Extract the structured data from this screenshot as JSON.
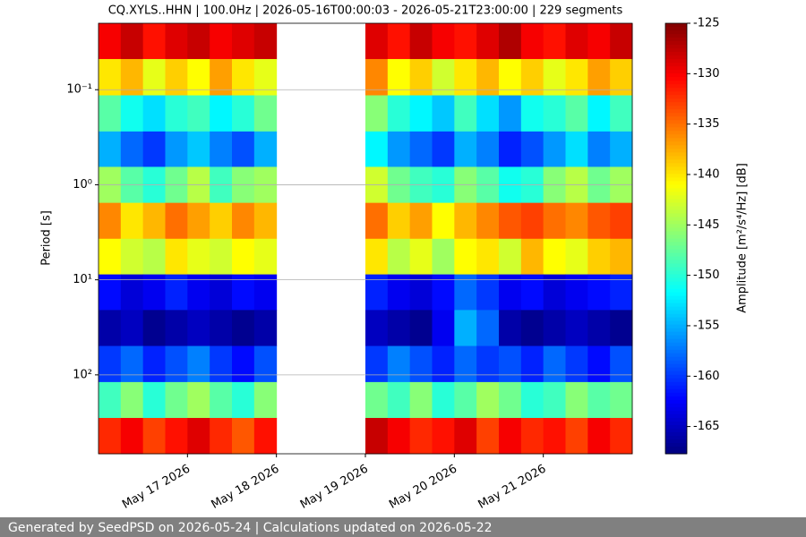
{
  "chart_data": {
    "type": "heatmap",
    "title": "CQ.XYLS..HHN | 100.0Hz | 2026-05-16T00:00:03 - 2026-05-21T23:00:00 | 229 segments",
    "ylabel": "Period [s]",
    "zlabel": "Amplitude [m²/s⁴/Hz] [dB]",
    "cmap": "jet",
    "ylog": true,
    "yinvert": true,
    "grid": true,
    "xlim": [
      "2026-05-16T00:00",
      "2026-05-22T00:00"
    ],
    "xticks": [
      {
        "value": "2026-05-17T00:00",
        "label": "May 17 2026"
      },
      {
        "value": "2026-05-18T00:00",
        "label": "May 18 2026"
      },
      {
        "value": "2026-05-19T00:00",
        "label": "May 19 2026"
      },
      {
        "value": "2026-05-20T00:00",
        "label": "May 20 2026"
      },
      {
        "value": "2026-05-21T00:00",
        "label": "May 21 2026"
      }
    ],
    "ylim": [
      0.02,
      676
    ],
    "yticks": [
      {
        "value": 0.1,
        "label": "10⁻¹"
      },
      {
        "value": 1,
        "label": "10⁰"
      },
      {
        "value": 10,
        "label": "10¹"
      },
      {
        "value": 100,
        "label": "10²"
      }
    ],
    "zlim": [
      -167.7,
      -125
    ],
    "zticks": [
      -125,
      -130,
      -135,
      -140,
      -145,
      -150,
      -155,
      -160,
      -165
    ],
    "x": [
      "2026-05-16T00:00",
      "2026-05-16T06:00",
      "2026-05-16T12:00",
      "2026-05-16T18:00",
      "2026-05-17T00:00",
      "2026-05-17T06:00",
      "2026-05-17T12:00",
      "2026-05-17T18:00",
      "2026-05-18T00:00",
      "2026-05-18T06:00",
      "2026-05-18T12:00",
      "2026-05-18T18:00",
      "2026-05-19T00:00",
      "2026-05-19T06:00",
      "2026-05-19T12:00",
      "2026-05-19T18:00",
      "2026-05-20T00:00",
      "2026-05-20T06:00",
      "2026-05-20T12:00",
      "2026-05-20T18:00",
      "2026-05-21T00:00",
      "2026-05-21T06:00",
      "2026-05-21T12:00",
      "2026-05-21T18:00"
    ],
    "y": [
      0.031,
      0.073,
      0.18,
      0.42,
      1.0,
      2.4,
      5.7,
      13.5,
      32,
      77,
      184,
      438
    ],
    "z": [
      [
        -130,
        -128,
        -131,
        -129,
        -128,
        -130,
        -129,
        -128,
        null,
        null,
        null,
        null,
        -129,
        -131,
        -128,
        -130,
        -131,
        -129,
        -127,
        -130,
        -131,
        -129,
        -130,
        -128
      ],
      [
        -140,
        -138,
        -142,
        -139,
        -141,
        -137,
        -140,
        -142,
        null,
        null,
        null,
        null,
        -136,
        -141,
        -139,
        -143,
        -140,
        -138,
        -141,
        -139,
        -142,
        -140,
        -137,
        -139
      ],
      [
        -148,
        -151,
        -153,
        -150,
        -149,
        -152,
        -150,
        -147,
        null,
        null,
        null,
        null,
        -146,
        -150,
        -152,
        -154,
        -149,
        -153,
        -156,
        -151,
        -150,
        -148,
        -152,
        -149
      ],
      [
        -155,
        -158,
        -160,
        -156,
        -154,
        -157,
        -159,
        -155,
        null,
        null,
        null,
        null,
        -152,
        -156,
        -158,
        -160,
        -155,
        -157,
        -161,
        -159,
        -156,
        -153,
        -157,
        -155
      ],
      [
        -145,
        -148,
        -150,
        -147,
        -144,
        -149,
        -146,
        -145,
        null,
        null,
        null,
        null,
        -143,
        -147,
        -149,
        -150,
        -146,
        -148,
        -151,
        -150,
        -146,
        -144,
        -147,
        -145
      ],
      [
        -136,
        -140,
        -138,
        -135,
        -137,
        -139,
        -136,
        -138,
        null,
        null,
        null,
        null,
        -135,
        -139,
        -137,
        -141,
        -138,
        -136,
        -134,
        -133,
        -135,
        -136,
        -134,
        -133
      ],
      [
        -141,
        -143,
        -144,
        -140,
        -142,
        -143,
        -141,
        -142,
        null,
        null,
        null,
        null,
        -140,
        -144,
        -142,
        -145,
        -141,
        -140,
        -143,
        -138,
        -141,
        -142,
        -139,
        -138
      ],
      [
        -162,
        -164,
        -163,
        -161,
        -163,
        -164,
        -162,
        -163,
        null,
        null,
        null,
        null,
        -161,
        -163,
        -164,
        -162,
        -158,
        -160,
        -163,
        -162,
        -164,
        -163,
        -162,
        -161
      ],
      [
        -166,
        -165,
        -167,
        -166,
        -165,
        -166,
        -167,
        -166,
        null,
        null,
        null,
        null,
        -165,
        -166,
        -167,
        -163,
        -155,
        -158,
        -166,
        -167,
        -166,
        -165,
        -166,
        -167
      ],
      [
        -160,
        -158,
        -161,
        -159,
        -157,
        -160,
        -162,
        -159,
        null,
        null,
        null,
        null,
        -160,
        -157,
        -159,
        -161,
        -158,
        -160,
        -159,
        -161,
        -158,
        -160,
        -162,
        -159
      ],
      [
        -149,
        -146,
        -150,
        -147,
        -145,
        -148,
        -150,
        -146,
        null,
        null,
        null,
        null,
        -147,
        -149,
        -146,
        -150,
        -148,
        -145,
        -147,
        -150,
        -149,
        -146,
        -148,
        -147
      ],
      [
        -132,
        -130,
        -133,
        -131,
        -129,
        -132,
        -134,
        -131,
        null,
        null,
        null,
        null,
        -128,
        -130,
        -132,
        -131,
        -129,
        -133,
        -130,
        -132,
        -131,
        -133,
        -130,
        -132
      ]
    ]
  },
  "footer": "Generated by SeedPSD on 2026-05-24 | Calculations updated on 2026-05-22"
}
